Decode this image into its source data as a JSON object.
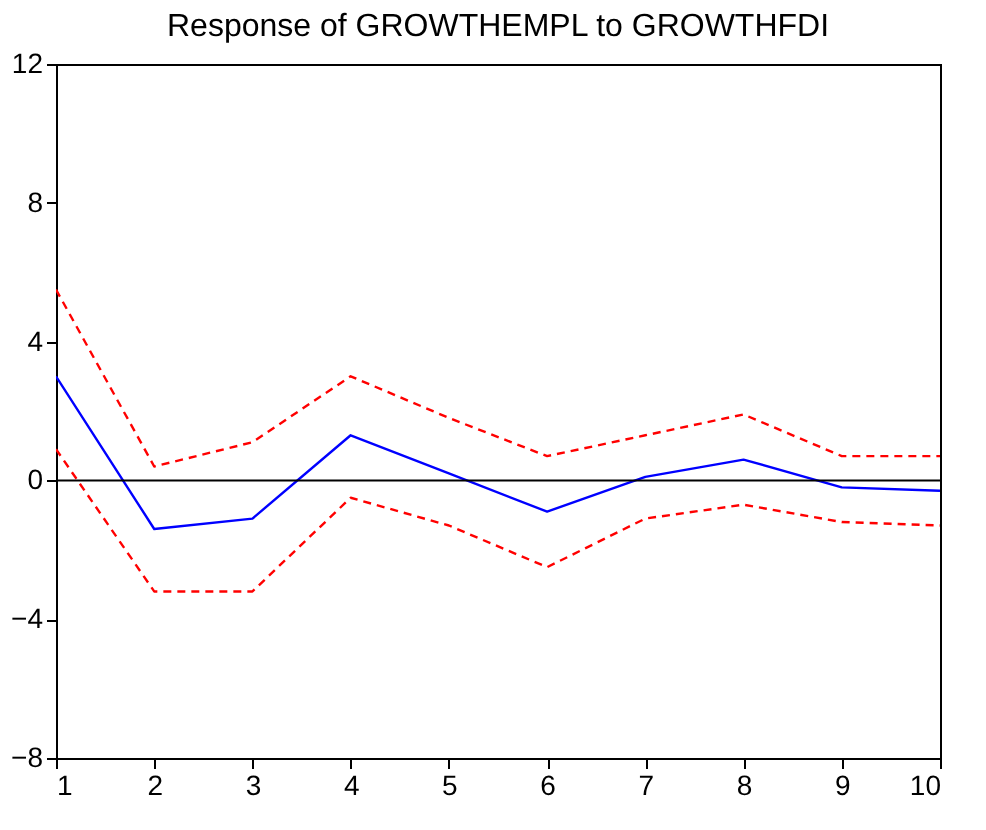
{
  "chart_data": {
    "type": "line",
    "title": "Response of GROWTHEMPL to GROWTHFDI",
    "x": [
      1,
      2,
      3,
      4,
      5,
      6,
      7,
      8,
      9,
      10
    ],
    "xlim": [
      1,
      10
    ],
    "xticks": [
      1,
      2,
      3,
      4,
      5,
      6,
      7,
      8,
      9,
      10
    ],
    "ylim": [
      -8,
      12
    ],
    "yticks": [
      -8,
      -4,
      0,
      4,
      8,
      12
    ],
    "grid": false,
    "marker": "none",
    "ref_lines": [
      {
        "axis": "y",
        "value": 0,
        "color": "#000000"
      }
    ],
    "series": [
      {
        "color": "#0000ff",
        "line_style": "solid",
        "values": [
          3.0,
          -1.4,
          -1.1,
          1.3,
          0.2,
          -0.9,
          0.1,
          0.6,
          -0.2,
          -0.3
        ]
      },
      {
        "color": "#ff0000",
        "line_style": "dashed",
        "values": [
          5.5,
          0.4,
          1.1,
          3.0,
          1.8,
          0.7,
          1.3,
          1.9,
          0.7,
          0.7
        ]
      },
      {
        "color": "#ff0000",
        "line_style": "dashed",
        "values": [
          0.9,
          -3.2,
          -3.2,
          -0.5,
          -1.3,
          -2.5,
          -1.1,
          -0.7,
          -1.2,
          -1.3
        ]
      }
    ]
  }
}
